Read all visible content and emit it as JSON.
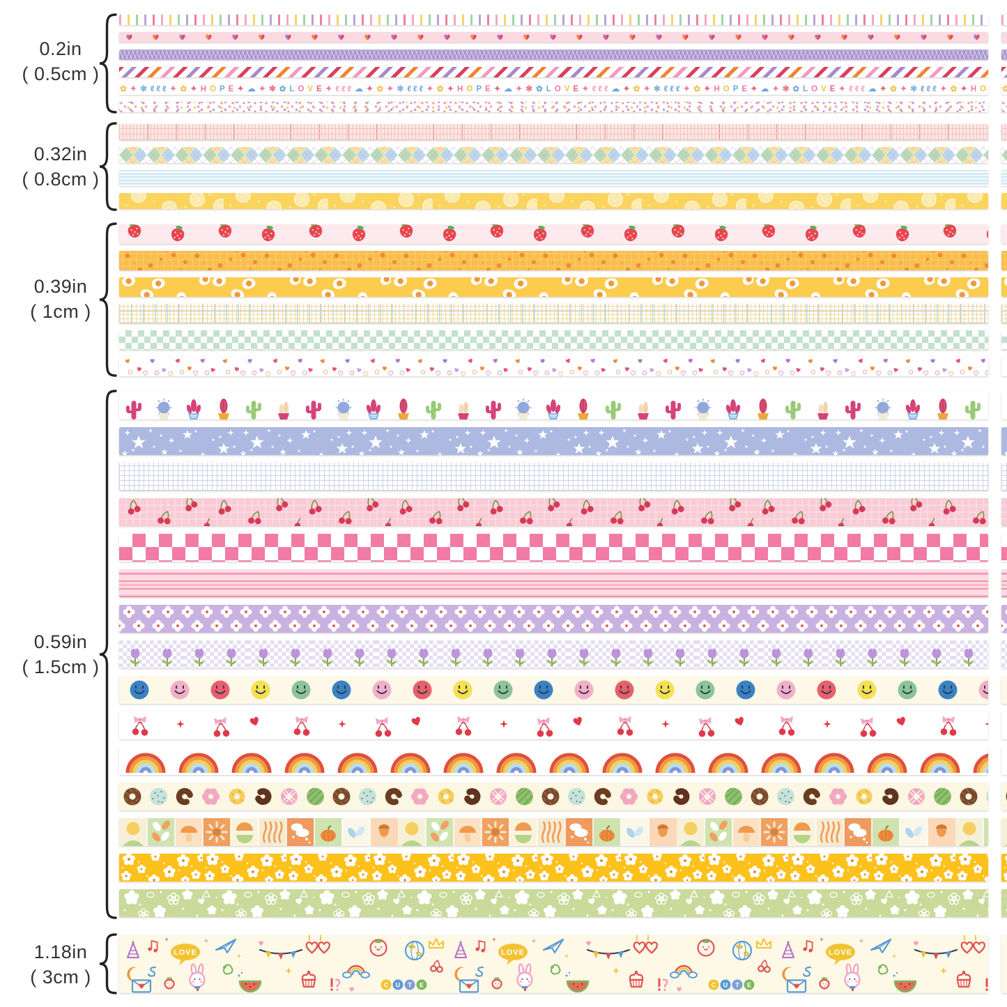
{
  "title": "washi tape width size chart",
  "size_groups": [
    {
      "label_in": "0.2in",
      "label_cm": "( 0.5cm )",
      "tape_count": 6,
      "tapes": [
        {
          "name": "pastel-tick-stripes",
          "bg": "#ffffff",
          "accent": "#f5a8c0"
        },
        {
          "name": "two-tone-hearts",
          "bg": "#fbdae2",
          "accent": "#e0485e"
        },
        {
          "name": "purple-herringbone",
          "bg": "#b7a5da",
          "accent": "#8f7cc0"
        },
        {
          "name": "diagonal-candy-stripes",
          "bg": "#ffffff",
          "accent": "#d64062"
        },
        {
          "name": "hope-love-doodles",
          "bg": "#ffffff",
          "accent": "#6fa8dc"
        },
        {
          "name": "confetti-polka-dots",
          "bg": "#ffffff",
          "accent": "#f0a0bc"
        }
      ]
    },
    {
      "label_in": "0.32in",
      "label_cm": "( 0.8cm )",
      "tape_count": 4,
      "tapes": [
        {
          "name": "pink-graph-grid",
          "bg": "#fbe7e5",
          "accent": "#e6968e"
        },
        {
          "name": "pastel-argyle-plaid",
          "bg": "#ffffff",
          "accent": "#b8d8ee"
        },
        {
          "name": "sky-blue-pinstripes",
          "bg": "#cfeaf6",
          "accent": "#ffffff"
        },
        {
          "name": "lemon-slices",
          "bg": "#fbd45e",
          "accent": "#fde79c"
        }
      ]
    },
    {
      "label_in": "0.39in",
      "label_cm": "( 1cm )",
      "tape_count": 6,
      "tapes": [
        {
          "name": "strawberries",
          "bg": "#fdeaee",
          "accent": "#e8454e"
        },
        {
          "name": "oranges-on-grid",
          "bg": "#f8bd4a",
          "accent": "#ed8a3c"
        },
        {
          "name": "fried-eggs",
          "bg": "#fccc4f",
          "accent": "#ffffff"
        },
        {
          "name": "fine-pastel-plaid",
          "bg": "#ffffff",
          "accent": "#f0d696"
        },
        {
          "name": "mint-checkerboard",
          "bg": "#ffffff",
          "accent": "#c2e1cf"
        },
        {
          "name": "heart-confetti",
          "bg": "#ffffff",
          "accent": "#e8537a"
        }
      ]
    },
    {
      "label_in": "0.59in",
      "label_cm": "( 1.5cm )",
      "tape_count": 15,
      "tapes": [
        {
          "name": "potted-cacti",
          "bg": "#ffffff",
          "accent": "#d6437a"
        },
        {
          "name": "white-stars",
          "bg": "#aeb9e2",
          "accent": "#ffffff"
        },
        {
          "name": "blue-graph-grid",
          "bg": "#ffffff",
          "accent": "#ccd2e4"
        },
        {
          "name": "cherries-on-pink",
          "bg": "#f9cbd6",
          "accent": "#d63b56"
        },
        {
          "name": "pink-checkerboard",
          "bg": "#ffffff",
          "accent": "#f27ba6"
        },
        {
          "name": "pink-pinstripes",
          "bg": "#fcdae2",
          "accent": "#f591ad"
        },
        {
          "name": "daisy-grid-on-lilac",
          "bg": "#c9b2e0",
          "accent": "#ffffff"
        },
        {
          "name": "tulips-on-checker",
          "bg": "#ffffff",
          "accent": "#bf93d8"
        },
        {
          "name": "rainbow-smiley-dots",
          "bg": "#fdf8e8",
          "accent": "#3b82c4"
        },
        {
          "name": "cherries-bows-hearts",
          "bg": "#ffffff",
          "accent": "#e0394a"
        },
        {
          "name": "retro-rainbows",
          "bg": "#ffffff",
          "accent": "#e0503c"
        },
        {
          "name": "donuts",
          "bg": "#fcf7e3",
          "accent": "#7a4a2b"
        },
        {
          "name": "autumn-tile-blocks",
          "bg": "#f6f0d8",
          "accent": "#f0a060"
        },
        {
          "name": "white-daisies-on-gold",
          "bg": "#fdc11c",
          "accent": "#ffffff"
        },
        {
          "name": "white-florals-on-sage",
          "bg": "#c9da9a",
          "accent": "#ffffff"
        }
      ]
    },
    {
      "label_in": "1.18in",
      "label_cm": "( 3cm )",
      "tape_count": 1,
      "tapes": [
        {
          "name": "kawaii-doodle-collage",
          "bg": "#fdf9e6",
          "accent": "#e05252"
        }
      ]
    }
  ],
  "text_tape_repeat": 7,
  "text_tape_tokens": [
    [
      "✿",
      "#f2c14e"
    ],
    [
      "✦",
      "#f2789f"
    ],
    [
      "✼",
      "#6fa8dc"
    ],
    [
      "ℓℓℓ",
      "#6fa8dc"
    ],
    [
      "✦",
      "#f2789f"
    ],
    [
      "✿",
      "#f2c14e"
    ],
    [
      "✦",
      "#e8627a"
    ],
    [
      "H",
      "#f2789f"
    ],
    [
      "O",
      "#f2c14e"
    ],
    [
      "P",
      "#6fa8dc"
    ],
    [
      "E",
      "#f2789f"
    ],
    [
      "✦",
      "#e8627a"
    ],
    [
      "☁",
      "#6fa8dc"
    ],
    [
      "✦",
      "#f2789f"
    ],
    [
      "✼",
      "#e8627a"
    ],
    [
      "✿",
      "#6fa8dc"
    ],
    [
      "L",
      "#6fa8dc"
    ],
    [
      "O",
      "#f2789f"
    ],
    [
      "V",
      "#f2c14e"
    ],
    [
      "E",
      "#e8627a"
    ],
    [
      "✦",
      "#f2789f"
    ],
    [
      "ℓℓℓ",
      "#f2a0b8"
    ],
    [
      "☁",
      "#6fa8dc"
    ],
    [
      "✦",
      "#e8627a"
    ]
  ],
  "doodle_words": {
    "love": "LOVE",
    "cute": [
      "C",
      "U",
      "T",
      "E"
    ]
  }
}
